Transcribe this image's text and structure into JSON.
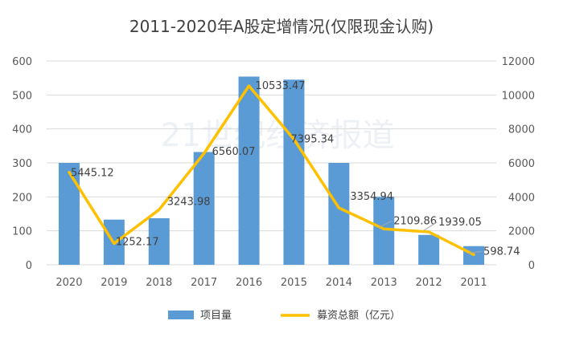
{
  "chart_data": {
    "type": "bar",
    "title": "2011-2020年A股定增情况(仅限现金认购)",
    "watermark": "21世纪经济报道",
    "categories": [
      "2020",
      "2019",
      "2018",
      "2017",
      "2016",
      "2015",
      "2014",
      "2013",
      "2012",
      "2011"
    ],
    "series": [
      {
        "name": "项目量",
        "type": "bar",
        "axis": "left",
        "color": "#5b9bd5",
        "values": [
          300,
          133,
          137,
          332,
          554,
          545,
          300,
          200,
          88,
          55
        ]
      },
      {
        "name": "募资总额（亿元）",
        "type": "line",
        "axis": "right",
        "color": "#ffc000",
        "values": [
          5445.12,
          1252.17,
          3243.98,
          6560.07,
          10533.47,
          7395.34,
          3354.94,
          2109.86,
          1939.05,
          598.74
        ],
        "labels": [
          "5445.12",
          "1252.17",
          "3243.98",
          "6560.07",
          "10533.47",
          "7395.34",
          "3354.94",
          "2109.86",
          "1939.05",
          "598.74"
        ]
      }
    ],
    "ylim_left": [
      0,
      600
    ],
    "yticks_left": [
      "0",
      "100",
      "200",
      "300",
      "400",
      "500",
      "600"
    ],
    "ylim_right": [
      0,
      12000
    ],
    "yticks_right": [
      "0",
      "2000",
      "4000",
      "6000",
      "8000",
      "10000",
      "12000"
    ],
    "grid": true,
    "legend_position": "bottom"
  }
}
